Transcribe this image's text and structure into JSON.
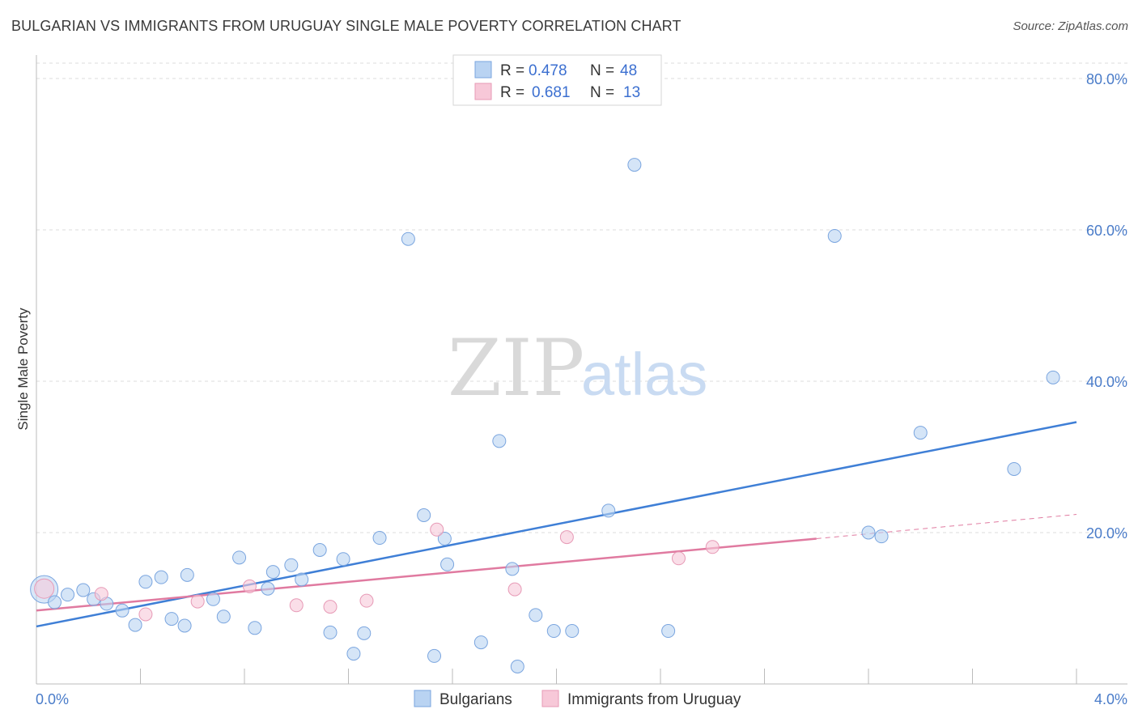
{
  "title": "BULGARIAN VS IMMIGRANTS FROM URUGUAY SINGLE MALE POVERTY CORRELATION CHART",
  "source": "Source: ZipAtlas.com",
  "watermark": {
    "zip": "ZIP",
    "atlas": "atlas"
  },
  "colors": {
    "blue": "#3f7fd6",
    "blue_fill": "#b9d3f2",
    "pink": "#e07aa0",
    "pink_fill": "#f7c8d8",
    "axis_text": "#4a7cc9",
    "grid": "#dddddd"
  },
  "legend": {
    "rows": [
      {
        "r_label": "R =",
        "r_value": "0.478",
        "n_label": "N =",
        "n_value": "48",
        "color": "blue"
      },
      {
        "r_label": "R =",
        "r_value": "0.681",
        "n_label": "N =",
        "n_value": "13",
        "color": "pink"
      }
    ]
  },
  "bottom_legend": [
    {
      "label": "Bulgarians",
      "color": "blue"
    },
    {
      "label": "Immigrants from Uruguay",
      "color": "pink"
    }
  ],
  "chart_data": {
    "type": "scatter",
    "title": "BULGARIAN VS IMMIGRANTS FROM URUGUAY SINGLE MALE POVERTY CORRELATION CHART",
    "xlabel": "",
    "ylabel": "Single Male Poverty",
    "xlim": [
      0,
      4.0
    ],
    "ylim": [
      0,
      80
    ],
    "x_tick_labels": [
      "0.0%",
      "4.0%"
    ],
    "y_tick_labels": [
      "20.0%",
      "40.0%",
      "60.0%",
      "80.0%"
    ],
    "y_ticks": [
      20,
      40,
      60,
      80
    ],
    "grid": true,
    "legend_position": "top-center",
    "series": [
      {
        "name": "Bulgarians",
        "color": "blue",
        "points": [
          [
            0.03,
            12.5
          ],
          [
            0.07,
            10.8
          ],
          [
            0.12,
            11.8
          ],
          [
            0.18,
            12.4
          ],
          [
            0.22,
            11.2
          ],
          [
            0.27,
            10.6
          ],
          [
            0.33,
            9.7
          ],
          [
            0.38,
            7.8
          ],
          [
            0.42,
            13.5
          ],
          [
            0.48,
            14.1
          ],
          [
            0.52,
            8.6
          ],
          [
            0.57,
            7.7
          ],
          [
            0.58,
            14.4
          ],
          [
            0.68,
            11.2
          ],
          [
            0.72,
            8.9
          ],
          [
            0.78,
            16.7
          ],
          [
            0.84,
            7.4
          ],
          [
            0.89,
            12.6
          ],
          [
            0.91,
            14.8
          ],
          [
            0.98,
            15.7
          ],
          [
            1.02,
            13.8
          ],
          [
            1.09,
            17.7
          ],
          [
            1.13,
            6.8
          ],
          [
            1.18,
            16.5
          ],
          [
            1.22,
            4.0
          ],
          [
            1.26,
            6.7
          ],
          [
            1.32,
            19.3
          ],
          [
            1.43,
            58.8
          ],
          [
            1.49,
            22.3
          ],
          [
            1.53,
            3.7
          ],
          [
            1.57,
            19.2
          ],
          [
            1.58,
            15.8
          ],
          [
            1.71,
            5.5
          ],
          [
            1.78,
            32.1
          ],
          [
            1.83,
            15.2
          ],
          [
            1.85,
            2.3
          ],
          [
            1.92,
            9.1
          ],
          [
            1.99,
            7.0
          ],
          [
            2.06,
            7.0
          ],
          [
            2.2,
            22.9
          ],
          [
            2.3,
            68.6
          ],
          [
            2.43,
            7.0
          ],
          [
            3.07,
            59.2
          ],
          [
            3.2,
            20.0
          ],
          [
            3.25,
            19.5
          ],
          [
            3.4,
            33.2
          ],
          [
            3.76,
            28.4
          ],
          [
            3.91,
            40.5
          ]
        ]
      },
      {
        "name": "Immigrants from Uruguay",
        "color": "pink",
        "points": [
          [
            0.03,
            12.6
          ],
          [
            0.25,
            11.9
          ],
          [
            0.42,
            9.2
          ],
          [
            0.62,
            10.9
          ],
          [
            0.82,
            12.9
          ],
          [
            1.0,
            10.4
          ],
          [
            1.13,
            10.2
          ],
          [
            1.27,
            11.0
          ],
          [
            1.54,
            20.4
          ],
          [
            1.84,
            12.5
          ],
          [
            2.04,
            19.4
          ],
          [
            2.47,
            16.6
          ],
          [
            2.6,
            18.1
          ]
        ]
      }
    ],
    "trendlines": [
      {
        "series": "Bulgarians",
        "x": [
          0.0,
          4.0
        ],
        "y": [
          7.6,
          34.6
        ],
        "style": "solid"
      },
      {
        "series": "Immigrants from Uruguay",
        "x": [
          0.0,
          3.0
        ],
        "y": [
          9.7,
          19.2
        ],
        "style": "solid"
      },
      {
        "series": "Immigrants from Uruguay",
        "x": [
          3.0,
          4.0
        ],
        "y": [
          19.2,
          22.4
        ],
        "style": "dashed"
      }
    ]
  }
}
